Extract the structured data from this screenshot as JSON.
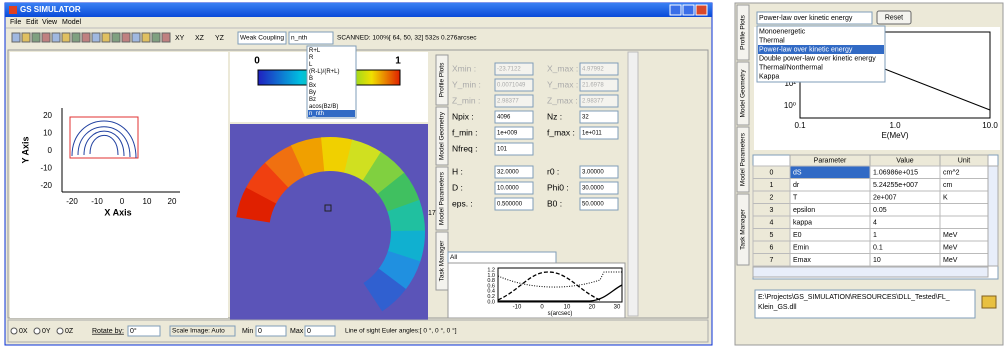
{
  "main_window": {
    "title": "GS SIMULATOR",
    "menu": [
      "File",
      "Edit",
      "View",
      "Model"
    ],
    "toolbar": {
      "axes_buttons": [
        "XY",
        "XZ",
        "YZ"
      ],
      "coupling": "Weak Coupling",
      "quantity": "n_nth",
      "status": "SCANNED: 100%[ 64, 50, 32] 532s 0.276arcsec"
    },
    "quantity_options": [
      "R+L",
      "R",
      "L",
      "(R-L)/(R+L)",
      "B",
      "Bx",
      "By",
      "Bz",
      "acos(Bz/B)",
      "n_nth"
    ],
    "selected_option": 9,
    "colorbar": {
      "min_label": "0",
      "max_label": "1"
    },
    "geometry_plot": {
      "y_ticks": [
        "20",
        "10",
        "0",
        "-10",
        "-20"
      ],
      "x_ticks": [
        "-20",
        "-10",
        "0",
        "10",
        "20"
      ],
      "x_label": "X Axis",
      "y_label": "Y Axis"
    },
    "tabs": [
      "Profile Plots",
      "Model Geometry",
      "Model Parameters",
      "Task Manager"
    ],
    "parameter_groups": [
      {
        "disabled": true,
        "rows": [
          [
            "Xmin :",
            "-23.7122",
            "X_max :",
            "4.97992"
          ],
          [
            "Y_min :",
            "0.0071049",
            "Y_max :",
            "21.6978"
          ],
          [
            "Z_min :",
            "2.98377",
            "Z_max :",
            "2.98377"
          ]
        ]
      },
      {
        "disabled": false,
        "rows": [
          [
            "Npix :",
            "4096",
            "Nz :",
            "32"
          ],
          [
            "f_min :",
            "1e+009",
            "f_max :",
            "1e+011"
          ],
          [
            "Nfreq :",
            "101"
          ]
        ]
      },
      {
        "disabled": false,
        "rows": [
          [
            "H :",
            "32.0000",
            "r0 :",
            "3.00000"
          ],
          [
            "D :",
            "10.0000",
            "Phi0 :",
            "30.0000"
          ],
          [
            "eps. :",
            "0.500000",
            "B0 :",
            "50.0000"
          ]
        ]
      }
    ],
    "slice_index": "17",
    "filter": "All",
    "profile_plot": {
      "y_ticks": [
        "1.2",
        "1.0",
        "0.8",
        "0.6",
        "0.4",
        "0.2",
        "0.0"
      ],
      "x_ticks": [
        "-10",
        "0",
        "10",
        "20",
        "30"
      ],
      "x_label": "s(arcsec)"
    },
    "bottom_bar": {
      "axes": [
        "0X",
        "0Y",
        "0Z"
      ],
      "rotate_label": "Rotate by:",
      "rotate_value": "0°",
      "scale": "Scale Image: Auto",
      "min_label": "Min :",
      "min_value": "0",
      "max_label": "Max",
      "max_value": "0",
      "euler": "Line of sight Euler angles:[ 0 °, 0 °, 0 °]"
    }
  },
  "distribution_window": {
    "distribution": "Power-law over kinetic energy",
    "reset": "Reset",
    "options": [
      "Monoenergetic",
      "Thermal",
      "Power-law over kinetic energy",
      "Double power-law over kinetic energy",
      "Thermal/Nonthermal",
      "Kappa"
    ],
    "selected_option": 2,
    "plot": {
      "y_ticks": [
        "10⁴",
        "10²",
        "10⁰"
      ],
      "x_ticks": [
        "0.1",
        "1.0",
        "10.0"
      ],
      "x_label": "E(MeV)"
    },
    "tabs": [
      "Profile Plots",
      "Model Geometry",
      "Model Parameters",
      "Task Manager"
    ],
    "table": {
      "headers": [
        "Parameter",
        "Value",
        "Unit"
      ],
      "rows": [
        [
          "0",
          "dS",
          "1.06986e+015",
          "cm^2"
        ],
        [
          "1",
          "dr",
          "5.24255e+007",
          "cm"
        ],
        [
          "2",
          "T",
          "2e+007",
          "K"
        ],
        [
          "3",
          "epsilon",
          "0.05"
        ],
        [
          "4",
          "kappa",
          "4"
        ],
        [
          "5",
          "E0",
          "1",
          "MeV"
        ],
        [
          "6",
          "Emin",
          "0.1",
          "MeV"
        ],
        [
          "7",
          "Emax",
          "10",
          "MeV"
        ]
      ]
    },
    "dll_path": [
      "E:\\Projects\\GS_SIMULATION\\RESOURCES\\DLL_Tested\\FL_",
      "Klein_GS.dll"
    ]
  }
}
